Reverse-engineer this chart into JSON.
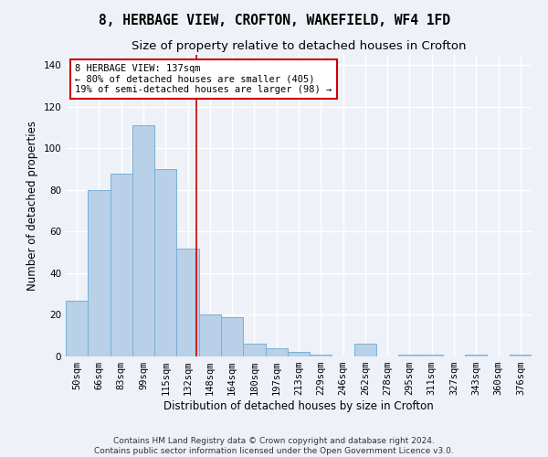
{
  "title1": "8, HERBAGE VIEW, CROFTON, WAKEFIELD, WF4 1FD",
  "title2": "Size of property relative to detached houses in Crofton",
  "xlabel": "Distribution of detached houses by size in Crofton",
  "ylabel": "Number of detached properties",
  "bar_color": "#b8d0e8",
  "bar_edge_color": "#7aafd4",
  "categories": [
    "50sqm",
    "66sqm",
    "83sqm",
    "99sqm",
    "115sqm",
    "132sqm",
    "148sqm",
    "164sqm",
    "180sqm",
    "197sqm",
    "213sqm",
    "229sqm",
    "246sqm",
    "262sqm",
    "278sqm",
    "295sqm",
    "311sqm",
    "327sqm",
    "343sqm",
    "360sqm",
    "376sqm"
  ],
  "values": [
    27,
    80,
    88,
    111,
    90,
    52,
    20,
    19,
    6,
    4,
    2,
    1,
    0,
    6,
    0,
    1,
    1,
    0,
    1,
    0,
    1
  ],
  "ylim": [
    0,
    145
  ],
  "yticks": [
    0,
    20,
    40,
    60,
    80,
    100,
    120,
    140
  ],
  "property_line_x": 5.37,
  "annotation_text": "8 HERBAGE VIEW: 137sqm\n← 80% of detached houses are smaller (405)\n19% of semi-detached houses are larger (98) →",
  "annotation_box_color": "#ffffff",
  "annotation_box_edge": "#cc0000",
  "line_color": "#cc0000",
  "footer1": "Contains HM Land Registry data © Crown copyright and database right 2024.",
  "footer2": "Contains public sector information licensed under the Open Government Licence v3.0.",
  "bg_color": "#eef2f8",
  "grid_color": "#ffffff",
  "title_fontsize": 10.5,
  "subtitle_fontsize": 9.5,
  "axis_label_fontsize": 8.5,
  "tick_fontsize": 7.5,
  "footer_fontsize": 6.5
}
